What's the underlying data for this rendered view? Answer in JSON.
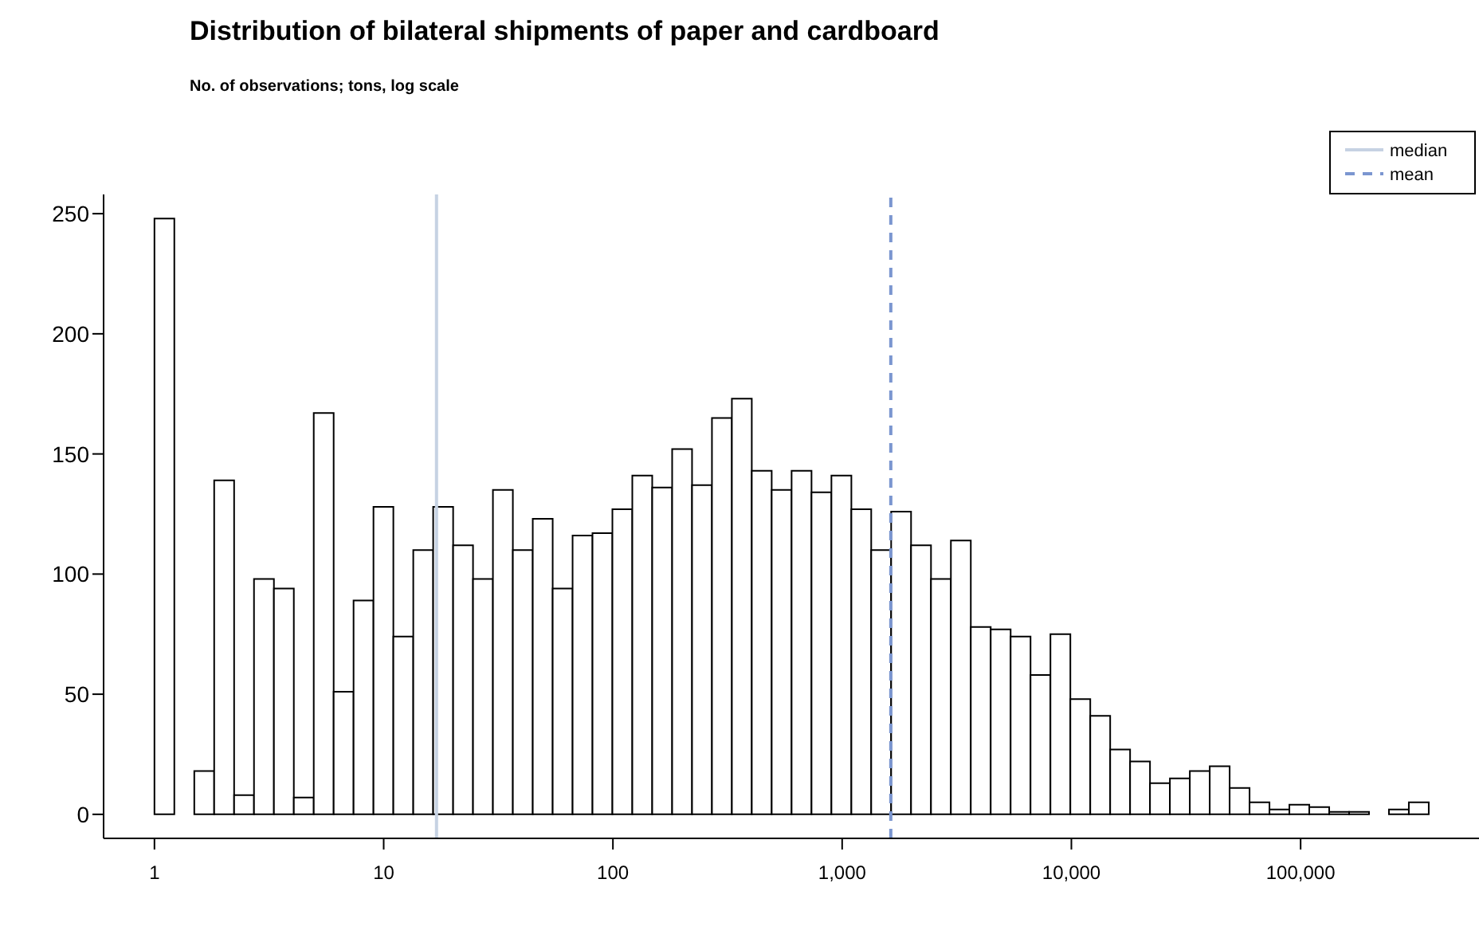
{
  "chart_data": {
    "type": "histogram",
    "title": "Distribution of bilateral shipments of paper and cardboard",
    "subtitle": "No. of observations; tons, log scale",
    "bins": [
      1,
      1.221,
      1.492,
      1.822,
      2.226,
      2.718,
      3.32,
      4.055,
      4.953,
      6.05,
      7.389,
      9.025,
      11.02,
      13.46,
      16.44,
      20.09,
      24.53,
      29.96,
      36.6,
      44.7,
      54.6,
      66.69,
      81.45,
      99.48,
      121.5,
      148.4,
      181.3,
      221.4,
      270.4,
      330.3,
      403.4,
      492.7,
      601.8,
      735.1,
      897.8,
      1097,
      1339,
      1636,
      1998,
      2441,
      2981,
      3641,
      4447,
      5432,
      6634,
      8103,
      9897,
      12088,
      14765,
      18034,
      22026,
      26903,
      32860,
      40135,
      49021,
      59874,
      73130,
      89322,
      109098,
      133252,
      162755,
      198789,
      242802,
      296559,
      362217
    ],
    "values": [
      248,
      0,
      18,
      139,
      8,
      98,
      94,
      7,
      167,
      51,
      89,
      128,
      74,
      110,
      128,
      112,
      98,
      135,
      110,
      123,
      94,
      116,
      117,
      127,
      141,
      136,
      152,
      137,
      165,
      173,
      143,
      135,
      143,
      134,
      141,
      127,
      110,
      126,
      112,
      98,
      114,
      78,
      77,
      74,
      58,
      75,
      48,
      41,
      27,
      22,
      13,
      15,
      18,
      20,
      11,
      5,
      2,
      4,
      3,
      1,
      1,
      0,
      2,
      5
    ],
    "color": "#ffffff",
    "log": "x",
    "xlim": [
      0.6,
      600000
    ],
    "xticks": [
      1,
      10,
      100,
      {
        "value": 1000,
        "label": "1,000"
      },
      {
        "value": 10000,
        "label": "10,000"
      },
      {
        "value": 100000,
        "label": "100,000"
      }
    ],
    "ylim": [
      -10,
      258
    ],
    "yticks": [
      0,
      50,
      100,
      150,
      200,
      250
    ],
    "grid": false,
    "legend": "top right",
    "ref_lines": [
      {
        "axis": "x",
        "value": 17,
        "label": "median",
        "color": "#c6d2e3",
        "line_style": "solid"
      },
      {
        "axis": "x",
        "value": 1630,
        "label": "mean",
        "color": "#7b96d0",
        "line_style": "dashed"
      }
    ]
  }
}
